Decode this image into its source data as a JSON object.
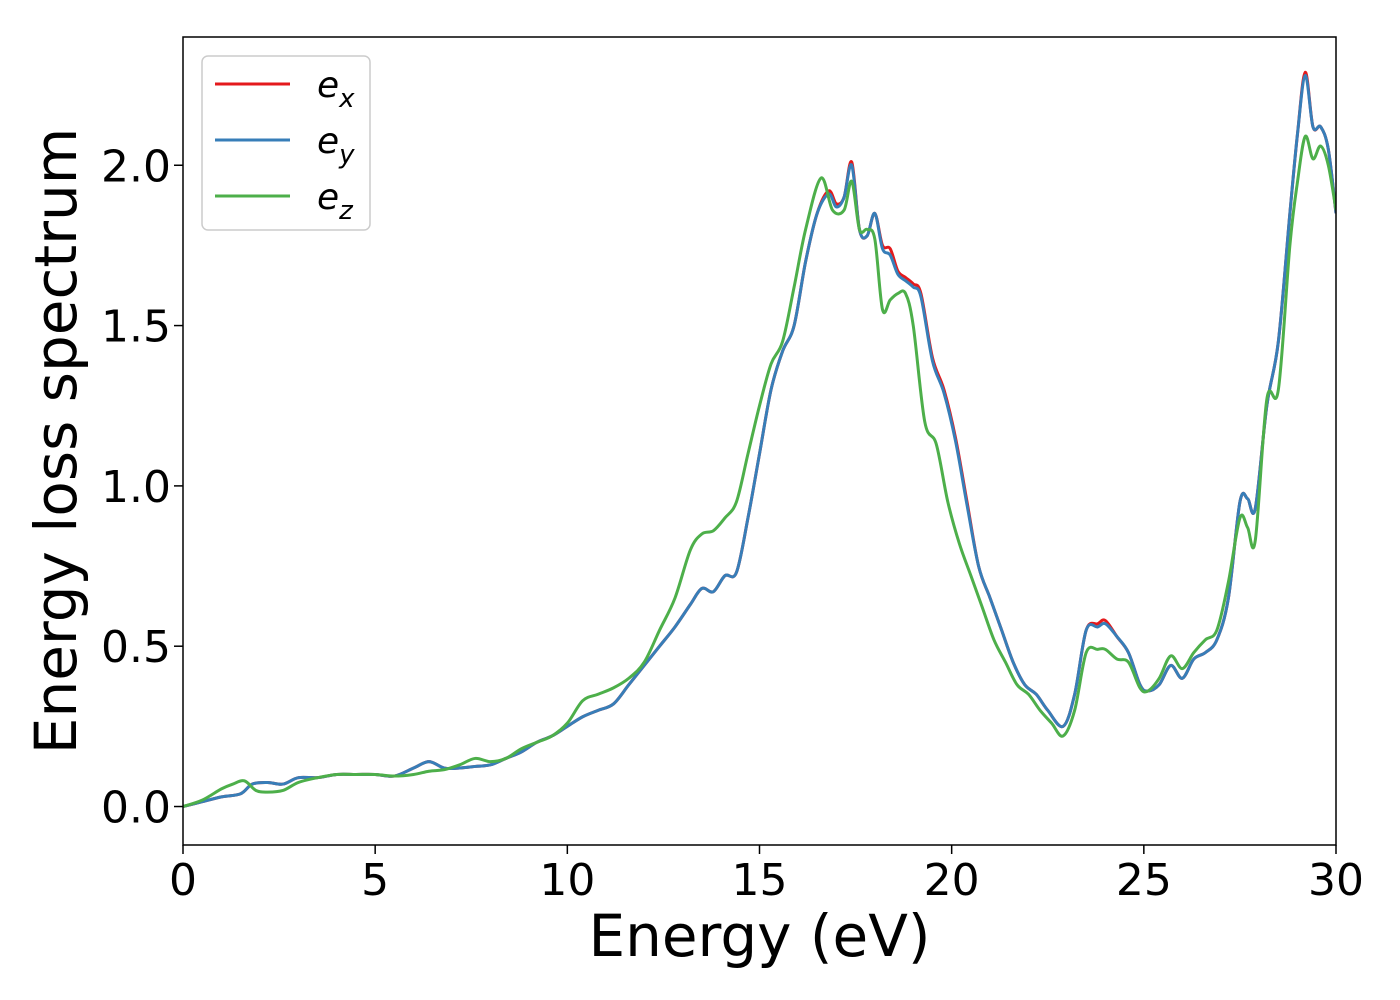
{
  "chart_data": {
    "type": "line",
    "title": "",
    "xlabel": "Energy (eV)",
    "ylabel": "Energy loss spectrum",
    "xlim": [
      0,
      30
    ],
    "ylim": [
      -0.12,
      2.4
    ],
    "xticks": [
      0,
      5,
      10,
      15,
      20,
      25,
      30
    ],
    "yticks": [
      0.0,
      0.5,
      1.0,
      1.5,
      2.0
    ],
    "xtick_labels": [
      "0",
      "5",
      "10",
      "15",
      "20",
      "25",
      "30"
    ],
    "ytick_labels": [
      "0.0",
      "0.5",
      "1.0",
      "1.5",
      "2.0"
    ],
    "grid": false,
    "legend_position": "top-left",
    "series": [
      {
        "name": "e",
        "sub": "x",
        "color": "#e41a1c",
        "x": [
          0,
          0.5,
          1.0,
          1.5,
          1.8,
          2.2,
          2.6,
          3.0,
          3.5,
          4.0,
          4.5,
          5.0,
          5.5,
          6.0,
          6.4,
          6.8,
          7.2,
          7.6,
          8.0,
          8.4,
          8.8,
          9.2,
          9.6,
          10.0,
          10.4,
          10.8,
          11.2,
          11.6,
          12.0,
          12.4,
          12.8,
          13.2,
          13.5,
          13.8,
          14.1,
          14.4,
          14.7,
          15.0,
          15.3,
          15.6,
          15.9,
          16.2,
          16.5,
          16.8,
          17.0,
          17.2,
          17.4,
          17.6,
          17.8,
          18.0,
          18.2,
          18.4,
          18.6,
          18.8,
          19.0,
          19.2,
          19.5,
          19.8,
          20.1,
          20.4,
          20.7,
          21.0,
          21.3,
          21.6,
          21.9,
          22.2,
          22.5,
          22.9,
          23.2,
          23.5,
          23.8,
          24.0,
          24.3,
          24.6,
          24.9,
          25.1,
          25.4,
          25.7,
          26.0,
          26.3,
          26.6,
          26.9,
          27.2,
          27.5,
          27.7,
          27.9,
          28.2,
          28.5,
          28.8,
          29.0,
          29.2,
          29.4,
          29.6,
          29.8,
          30.0
        ],
        "y": [
          0.0,
          0.015,
          0.03,
          0.04,
          0.07,
          0.075,
          0.07,
          0.09,
          0.09,
          0.1,
          0.1,
          0.1,
          0.095,
          0.12,
          0.14,
          0.12,
          0.12,
          0.125,
          0.13,
          0.15,
          0.17,
          0.2,
          0.22,
          0.25,
          0.28,
          0.3,
          0.32,
          0.38,
          0.44,
          0.5,
          0.56,
          0.63,
          0.68,
          0.67,
          0.72,
          0.73,
          0.9,
          1.1,
          1.3,
          1.42,
          1.5,
          1.7,
          1.85,
          1.92,
          1.88,
          1.9,
          2.01,
          1.8,
          1.78,
          1.85,
          1.75,
          1.74,
          1.67,
          1.65,
          1.63,
          1.6,
          1.4,
          1.3,
          1.15,
          0.95,
          0.75,
          0.65,
          0.55,
          0.45,
          0.38,
          0.35,
          0.3,
          0.25,
          0.35,
          0.55,
          0.57,
          0.58,
          0.53,
          0.48,
          0.38,
          0.36,
          0.38,
          0.44,
          0.4,
          0.46,
          0.48,
          0.52,
          0.65,
          0.95,
          0.96,
          0.93,
          1.25,
          1.45,
          1.85,
          2.1,
          2.29,
          2.12,
          2.12,
          2.05,
          1.85
        ]
      },
      {
        "name": "e",
        "sub": "y",
        "color": "#377eb8",
        "x": [
          0,
          0.5,
          1.0,
          1.5,
          1.8,
          2.2,
          2.6,
          3.0,
          3.5,
          4.0,
          4.5,
          5.0,
          5.5,
          6.0,
          6.4,
          6.8,
          7.2,
          7.6,
          8.0,
          8.4,
          8.8,
          9.2,
          9.6,
          10.0,
          10.4,
          10.8,
          11.2,
          11.6,
          12.0,
          12.4,
          12.8,
          13.2,
          13.5,
          13.8,
          14.1,
          14.4,
          14.7,
          15.0,
          15.3,
          15.6,
          15.9,
          16.2,
          16.5,
          16.8,
          17.0,
          17.2,
          17.4,
          17.6,
          17.8,
          18.0,
          18.2,
          18.4,
          18.6,
          18.8,
          19.0,
          19.2,
          19.5,
          19.8,
          20.1,
          20.4,
          20.7,
          21.0,
          21.3,
          21.6,
          21.9,
          22.2,
          22.5,
          22.9,
          23.2,
          23.5,
          23.8,
          24.0,
          24.3,
          24.6,
          24.9,
          25.1,
          25.4,
          25.7,
          26.0,
          26.3,
          26.6,
          26.9,
          27.2,
          27.5,
          27.7,
          27.9,
          28.2,
          28.5,
          28.8,
          29.0,
          29.2,
          29.4,
          29.6,
          29.8,
          30.0
        ],
        "y": [
          0.0,
          0.015,
          0.03,
          0.04,
          0.07,
          0.075,
          0.07,
          0.09,
          0.09,
          0.1,
          0.1,
          0.1,
          0.095,
          0.12,
          0.14,
          0.12,
          0.12,
          0.125,
          0.13,
          0.15,
          0.17,
          0.2,
          0.22,
          0.25,
          0.28,
          0.3,
          0.32,
          0.38,
          0.44,
          0.5,
          0.56,
          0.63,
          0.68,
          0.67,
          0.72,
          0.73,
          0.9,
          1.1,
          1.3,
          1.42,
          1.5,
          1.7,
          1.85,
          1.91,
          1.87,
          1.9,
          2.0,
          1.8,
          1.78,
          1.85,
          1.74,
          1.72,
          1.66,
          1.64,
          1.62,
          1.59,
          1.39,
          1.29,
          1.14,
          0.94,
          0.75,
          0.65,
          0.55,
          0.45,
          0.38,
          0.35,
          0.3,
          0.25,
          0.35,
          0.55,
          0.56,
          0.57,
          0.53,
          0.48,
          0.38,
          0.36,
          0.38,
          0.44,
          0.4,
          0.46,
          0.48,
          0.52,
          0.65,
          0.95,
          0.96,
          0.93,
          1.25,
          1.45,
          1.85,
          2.1,
          2.28,
          2.12,
          2.12,
          2.05,
          1.85
        ]
      },
      {
        "name": "e",
        "sub": "z",
        "color": "#4daf4a",
        "x": [
          0,
          0.5,
          1.0,
          1.3,
          1.6,
          1.9,
          2.2,
          2.6,
          3.0,
          3.5,
          4.0,
          4.5,
          5.0,
          5.5,
          6.0,
          6.4,
          6.8,
          7.2,
          7.6,
          8.0,
          8.4,
          8.8,
          9.2,
          9.6,
          10.0,
          10.4,
          10.8,
          11.2,
          11.6,
          12.0,
          12.4,
          12.8,
          13.2,
          13.5,
          13.8,
          14.1,
          14.4,
          14.7,
          15.0,
          15.3,
          15.6,
          15.9,
          16.2,
          16.6,
          16.9,
          17.2,
          17.4,
          17.6,
          17.8,
          18.0,
          18.2,
          18.4,
          18.6,
          18.8,
          19.0,
          19.3,
          19.6,
          19.9,
          20.2,
          20.5,
          20.8,
          21.1,
          21.4,
          21.7,
          22.0,
          22.3,
          22.6,
          22.9,
          23.2,
          23.5,
          23.8,
          24.0,
          24.3,
          24.6,
          24.9,
          25.1,
          25.4,
          25.7,
          26.0,
          26.3,
          26.6,
          26.9,
          27.2,
          27.5,
          27.7,
          27.9,
          28.2,
          28.5,
          28.8,
          29.0,
          29.2,
          29.4,
          29.6,
          29.8,
          30.0
        ],
        "y": [
          0.0,
          0.02,
          0.055,
          0.07,
          0.08,
          0.05,
          0.045,
          0.05,
          0.075,
          0.09,
          0.1,
          0.1,
          0.1,
          0.095,
          0.1,
          0.11,
          0.115,
          0.13,
          0.15,
          0.14,
          0.15,
          0.18,
          0.2,
          0.22,
          0.26,
          0.33,
          0.35,
          0.37,
          0.4,
          0.45,
          0.55,
          0.65,
          0.8,
          0.85,
          0.86,
          0.9,
          0.95,
          1.1,
          1.25,
          1.38,
          1.45,
          1.62,
          1.8,
          1.96,
          1.86,
          1.86,
          1.95,
          1.8,
          1.8,
          1.77,
          1.55,
          1.58,
          1.6,
          1.6,
          1.5,
          1.2,
          1.13,
          0.95,
          0.82,
          0.72,
          0.62,
          0.52,
          0.45,
          0.38,
          0.35,
          0.3,
          0.26,
          0.22,
          0.3,
          0.48,
          0.49,
          0.49,
          0.46,
          0.45,
          0.37,
          0.36,
          0.4,
          0.47,
          0.43,
          0.48,
          0.52,
          0.55,
          0.7,
          0.9,
          0.87,
          0.83,
          1.27,
          1.3,
          1.75,
          1.95,
          2.09,
          2.02,
          2.06,
          2.0,
          1.86
        ]
      }
    ]
  }
}
